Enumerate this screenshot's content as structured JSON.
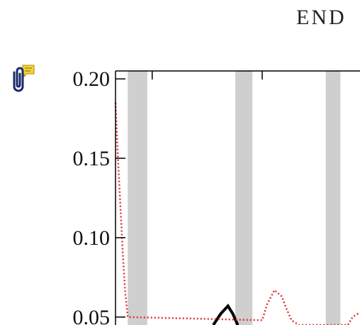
{
  "header": {
    "text": "END"
  },
  "icons": {
    "attachment": "paperclip-comment-icon"
  },
  "colors": {
    "band": "#cfcfcf",
    "solid_line": "#000000",
    "dotted_line": "#e03030",
    "axis": "#000000"
  },
  "chart_data": {
    "type": "line",
    "title": "",
    "xlabel": "",
    "ylabel": "",
    "ylim": [
      0.045,
      0.205
    ],
    "xlim": [
      0,
      1
    ],
    "y_ticks": [
      0.2,
      0.15,
      0.1,
      0.05
    ],
    "y_tick_labels": [
      "0.20",
      "0.15",
      "0.10",
      "0.05"
    ],
    "grid": false,
    "shaded_bands": [
      [
        0.05,
        0.13
      ],
      [
        0.49,
        0.56
      ],
      [
        0.86,
        0.92
      ]
    ],
    "series": [
      {
        "style": "solid",
        "x": [
          0.4,
          0.43,
          0.46,
          0.48,
          0.5
        ],
        "y": [
          0.045,
          0.052,
          0.057,
          0.052,
          0.045
        ]
      },
      {
        "style": "dotted",
        "x": [
          0.0,
          0.01,
          0.02,
          0.03,
          0.04,
          0.05,
          0.6,
          0.62,
          0.65,
          0.68,
          0.7,
          0.72,
          0.75,
          0.95,
          0.97,
          1.0
        ],
        "y": [
          0.185,
          0.15,
          0.12,
          0.09,
          0.065,
          0.05,
          0.048,
          0.058,
          0.067,
          0.063,
          0.055,
          0.048,
          0.045,
          0.045,
          0.05,
          0.053
        ]
      }
    ]
  }
}
